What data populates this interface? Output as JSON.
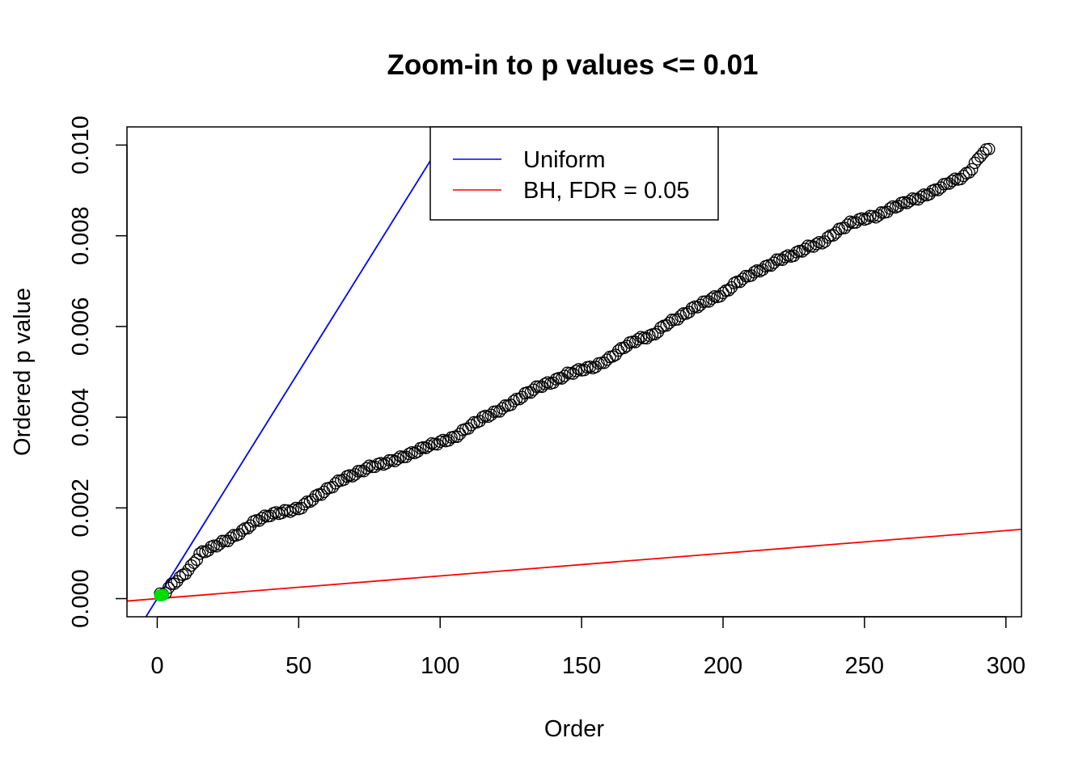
{
  "chart_data": {
    "type": "scatter",
    "title": "Zoom-in to p values <= 0.01",
    "xlabel": "Order",
    "ylabel": "Ordered p value",
    "xlim": [
      -10.7,
      305.5
    ],
    "ylim": [
      -0.0004,
      0.0104
    ],
    "x_ticks": [
      0,
      50,
      100,
      150,
      200,
      250,
      300
    ],
    "x_tick_labels": [
      "0",
      "50",
      "100",
      "150",
      "200",
      "250",
      "300"
    ],
    "y_ticks": [
      0,
      0.002,
      0.004,
      0.006,
      0.008,
      0.01
    ],
    "y_tick_labels": [
      "0.000",
      "0.002",
      "0.004",
      "0.006",
      "0.008",
      "0.010"
    ],
    "grid": false,
    "legend_position": "top-center",
    "n_points": 294,
    "anchors": [
      [
        1,
        8e-05
      ],
      [
        2,
        0.0001
      ],
      [
        3,
        0.00015
      ],
      [
        5,
        0.0003
      ],
      [
        8,
        0.00045
      ],
      [
        12,
        0.0007
      ],
      [
        15,
        0.00098
      ],
      [
        20,
        0.00115
      ],
      [
        25,
        0.0013
      ],
      [
        30,
        0.00148
      ],
      [
        35,
        0.00172
      ],
      [
        40,
        0.00185
      ],
      [
        45,
        0.00192
      ],
      [
        50,
        0.00198
      ],
      [
        55,
        0.0022
      ],
      [
        60,
        0.0024
      ],
      [
        65,
        0.00262
      ],
      [
        70,
        0.00275
      ],
      [
        75,
        0.0029
      ],
      [
        80,
        0.00298
      ],
      [
        85,
        0.00308
      ],
      [
        90,
        0.0032
      ],
      [
        95,
        0.00335
      ],
      [
        100,
        0.00345
      ],
      [
        105,
        0.00355
      ],
      [
        110,
        0.00378
      ],
      [
        115,
        0.00398
      ],
      [
        120,
        0.00412
      ],
      [
        125,
        0.0043
      ],
      [
        130,
        0.0045
      ],
      [
        135,
        0.00468
      ],
      [
        140,
        0.00478
      ],
      [
        145,
        0.00495
      ],
      [
        150,
        0.00505
      ],
      [
        155,
        0.00512
      ],
      [
        160,
        0.0053
      ],
      [
        165,
        0.00555
      ],
      [
        170,
        0.00572
      ],
      [
        175,
        0.0058
      ],
      [
        180,
        0.00605
      ],
      [
        185,
        0.00622
      ],
      [
        190,
        0.00642
      ],
      [
        195,
        0.00658
      ],
      [
        200,
        0.00672
      ],
      [
        205,
        0.00698
      ],
      [
        210,
        0.00715
      ],
      [
        215,
        0.0073
      ],
      [
        220,
        0.00748
      ],
      [
        225,
        0.00758
      ],
      [
        230,
        0.00775
      ],
      [
        235,
        0.00785
      ],
      [
        240,
        0.00808
      ],
      [
        245,
        0.00828
      ],
      [
        250,
        0.00838
      ],
      [
        255,
        0.00845
      ],
      [
        260,
        0.00862
      ],
      [
        265,
        0.00875
      ],
      [
        270,
        0.00885
      ],
      [
        275,
        0.009
      ],
      [
        280,
        0.00918
      ],
      [
        285,
        0.0093
      ],
      [
        288,
        0.00948
      ],
      [
        291,
        0.00978
      ],
      [
        294,
        0.00992
      ]
    ],
    "highlight_points": [
      [
        1,
        7e-05
      ],
      [
        2,
        8e-05
      ]
    ],
    "series": [
      {
        "name": "Uniform",
        "type": "line",
        "slope": 0.0001,
        "intercept": 0,
        "color": "#0000ff"
      },
      {
        "name": "BH, FDR = 0.05",
        "type": "line",
        "slope": 5e-06,
        "intercept": 0,
        "color": "#ff0000"
      }
    ],
    "point_color": "#000000",
    "highlight_color": "#00dd00"
  }
}
